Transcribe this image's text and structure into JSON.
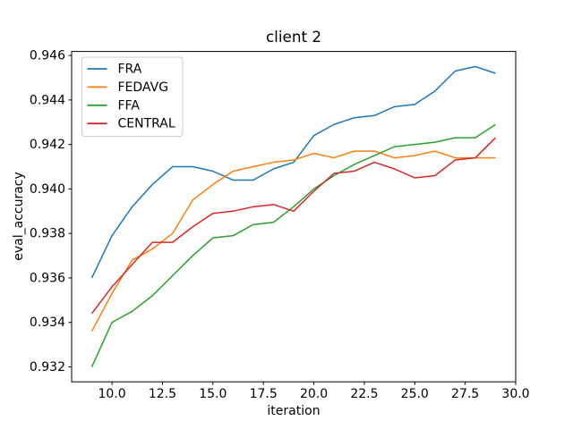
{
  "chart_data": {
    "type": "line",
    "title": "client 2",
    "xlabel": "iteration",
    "ylabel": "eval_accuracy",
    "x": [
      9,
      10,
      11,
      12,
      13,
      14,
      15,
      16,
      17,
      18,
      19,
      20,
      21,
      22,
      23,
      24,
      25,
      26,
      27,
      28,
      29
    ],
    "series": [
      {
        "name": "FRA",
        "color": "#1f77b4",
        "values": [
          0.936,
          0.9379,
          0.9392,
          0.9402,
          0.941,
          0.941,
          0.9408,
          0.9404,
          0.9404,
          0.9409,
          0.9412,
          0.9424,
          0.9429,
          0.9432,
          0.9433,
          0.9437,
          0.9438,
          0.9444,
          0.9453,
          0.9455,
          0.9452
        ]
      },
      {
        "name": "FEDAVG",
        "color": "#ff7f0e",
        "values": [
          0.9336,
          0.9353,
          0.9368,
          0.9373,
          0.938,
          0.9395,
          0.9402,
          0.9408,
          0.941,
          0.9412,
          0.9413,
          0.9416,
          0.9414,
          0.9417,
          0.9417,
          0.9414,
          0.9415,
          0.9417,
          0.9414,
          0.9414,
          0.9414
        ]
      },
      {
        "name": "FFA",
        "color": "#2ca02c",
        "values": [
          0.932,
          0.934,
          0.9345,
          0.9352,
          0.9361,
          0.937,
          0.9378,
          0.9379,
          0.9384,
          0.9385,
          0.9392,
          0.94,
          0.9406,
          0.9411,
          0.9415,
          0.9419,
          0.942,
          0.9421,
          0.9423,
          0.9423,
          0.9429
        ]
      },
      {
        "name": "CENTRAL",
        "color": "#d62728",
        "values": [
          0.9344,
          0.9356,
          0.9366,
          0.9376,
          0.9376,
          0.9383,
          0.9389,
          0.939,
          0.9392,
          0.9393,
          0.939,
          0.9399,
          0.9407,
          0.9408,
          0.9412,
          0.9409,
          0.9405,
          0.9406,
          0.9413,
          0.9414,
          0.9423
        ]
      }
    ],
    "xlim": [
      8,
      30
    ],
    "ylim": [
      0.93133,
      0.94618
    ],
    "xticks": [
      10.0,
      12.5,
      15.0,
      17.5,
      20.0,
      22.5,
      25.0,
      27.5,
      30.0
    ],
    "yticks": [
      0.932,
      0.934,
      0.936,
      0.938,
      0.94,
      0.942,
      0.944,
      0.946
    ],
    "grid": false,
    "legend": {
      "position": "upper left",
      "entries": [
        "FRA",
        "FEDAVG",
        "FFA",
        "CENTRAL"
      ]
    },
    "axis_color": "#000000",
    "legend_border_color": "#cccccc"
  }
}
